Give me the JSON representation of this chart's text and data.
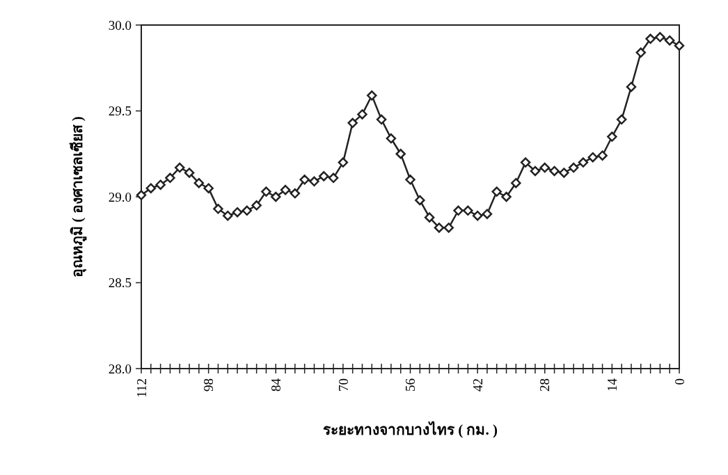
{
  "chart_data": {
    "type": "line",
    "xlabel": "ระยะทางจากบางไทร ( กม. )",
    "ylabel": "อุณหภูมิ ( องศาเซลเซียส )",
    "x": [
      112,
      110,
      108,
      106,
      104,
      102,
      100,
      98,
      96,
      94,
      92,
      90,
      88,
      86,
      84,
      82,
      80,
      78,
      76,
      74,
      72,
      70,
      68,
      66,
      64,
      62,
      60,
      58,
      56,
      54,
      52,
      50,
      48,
      46,
      44,
      42,
      40,
      38,
      36,
      34,
      32,
      30,
      28,
      26,
      24,
      22,
      20,
      18,
      16,
      14,
      12,
      10,
      8,
      6,
      4,
      2,
      0
    ],
    "series": [
      {
        "color": "#222222",
        "values": [
          29.01,
          29.05,
          29.07,
          29.11,
          29.17,
          29.14,
          29.08,
          29.05,
          28.93,
          28.89,
          28.91,
          28.92,
          28.95,
          29.03,
          29.0,
          29.04,
          29.02,
          29.1,
          29.09,
          29.12,
          29.11,
          29.2,
          29.43,
          29.48,
          29.59,
          29.45,
          29.34,
          29.25,
          29.1,
          28.98,
          28.88,
          28.82,
          28.82,
          28.92,
          28.92,
          28.89,
          28.9,
          29.03,
          29.0,
          29.08,
          29.2,
          29.15,
          29.17,
          29.15,
          29.14,
          29.17,
          29.2,
          29.23,
          29.24,
          29.35,
          29.45,
          29.64,
          29.84,
          29.92,
          29.93,
          29.91,
          29.88
        ]
      }
    ],
    "xlim": [
      112,
      0
    ],
    "xticks": [
      112,
      {
        "value": 110,
        "label": null
      },
      {
        "value": 108,
        "label": null
      },
      {
        "value": 106,
        "label": null
      },
      {
        "value": 104,
        "label": null
      },
      {
        "value": 102,
        "label": null
      },
      {
        "value": 100,
        "label": null
      },
      98,
      {
        "value": 96,
        "label": null
      },
      {
        "value": 94,
        "label": null
      },
      {
        "value": 92,
        "label": null
      },
      {
        "value": 90,
        "label": null
      },
      {
        "value": 88,
        "label": null
      },
      {
        "value": 86,
        "label": null
      },
      84,
      {
        "value": 82,
        "label": null
      },
      {
        "value": 80,
        "label": null
      },
      {
        "value": 78,
        "label": null
      },
      {
        "value": 76,
        "label": null
      },
      {
        "value": 74,
        "label": null
      },
      {
        "value": 72,
        "label": null
      },
      70,
      {
        "value": 68,
        "label": null
      },
      {
        "value": 66,
        "label": null
      },
      {
        "value": 64,
        "label": null
      },
      {
        "value": 62,
        "label": null
      },
      {
        "value": 60,
        "label": null
      },
      {
        "value": 58,
        "label": null
      },
      56,
      {
        "value": 54,
        "label": null
      },
      {
        "value": 52,
        "label": null
      },
      {
        "value": 50,
        "label": null
      },
      {
        "value": 48,
        "label": null
      },
      {
        "value": 46,
        "label": null
      },
      {
        "value": 44,
        "label": null
      },
      42,
      {
        "value": 40,
        "label": null
      },
      {
        "value": 38,
        "label": null
      },
      {
        "value": 36,
        "label": null
      },
      {
        "value": 34,
        "label": null
      },
      {
        "value": 32,
        "label": null
      },
      {
        "value": 30,
        "label": null
      },
      28,
      {
        "value": 26,
        "label": null
      },
      {
        "value": 24,
        "label": null
      },
      {
        "value": 22,
        "label": null
      },
      {
        "value": 20,
        "label": null
      },
      {
        "value": 18,
        "label": null
      },
      {
        "value": 16,
        "label": null
      },
      14,
      {
        "value": 12,
        "label": null
      },
      {
        "value": 10,
        "label": null
      },
      {
        "value": 8,
        "label": null
      },
      {
        "value": 6,
        "label": null
      },
      {
        "value": 4,
        "label": null
      },
      {
        "value": 2,
        "label": null
      },
      0
    ],
    "ylim": [
      28,
      30
    ],
    "yticks": [
      {
        "value": 28,
        "label": "28.0"
      },
      {
        "value": 28.5,
        "label": "28.5"
      },
      {
        "value": 29,
        "label": "29.0"
      },
      {
        "value": 29.5,
        "label": "29.5"
      },
      {
        "value": 30,
        "label": "30.0"
      }
    ],
    "marker": "diamond",
    "line_style": "solid",
    "grid": false
  }
}
